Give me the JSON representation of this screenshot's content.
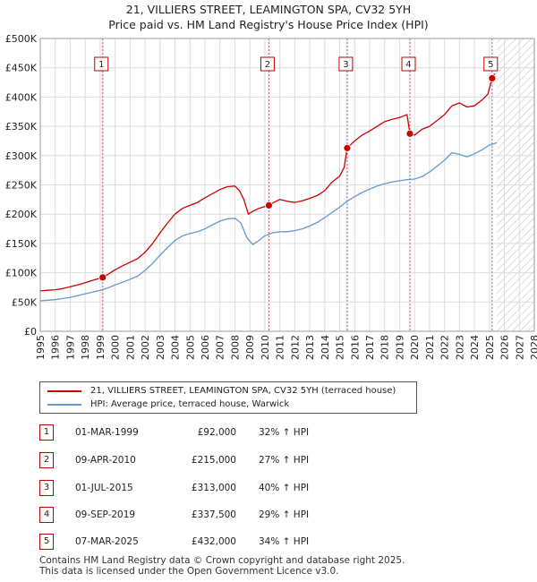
{
  "chart_data": {
    "type": "line",
    "title": "21, VILLIERS STREET, LEAMINGTON SPA, CV32 5YH",
    "subtitle": "Price paid vs. HM Land Registry's House Price Index (HPI)",
    "xlabel": "",
    "ylabel": "",
    "xlim": [
      1995,
      2028
    ],
    "ylim": [
      0,
      500000
    ],
    "y_ticks": [
      0,
      50000,
      100000,
      150000,
      200000,
      250000,
      300000,
      350000,
      400000,
      450000,
      500000
    ],
    "y_tick_labels": [
      "£0",
      "£50K",
      "£100K",
      "£150K",
      "£200K",
      "£250K",
      "£300K",
      "£350K",
      "£400K",
      "£450K",
      "£500K"
    ],
    "x_ticks": [
      1995,
      1996,
      1997,
      1998,
      1999,
      2000,
      2001,
      2002,
      2003,
      2004,
      2005,
      2006,
      2007,
      2008,
      2009,
      2010,
      2011,
      2012,
      2013,
      2014,
      2015,
      2016,
      2017,
      2018,
      2019,
      2020,
      2021,
      2022,
      2023,
      2024,
      2025,
      2026,
      2027,
      2028
    ],
    "x_tick_labels": [
      "1995",
      "1996",
      "1997",
      "1998",
      "1999",
      "2000",
      "2001",
      "2002",
      "2003",
      "2004",
      "2005",
      "2006",
      "2007",
      "2008",
      "2009",
      "2010",
      "2011",
      "2012",
      "2013",
      "2014",
      "2015",
      "2016",
      "2017",
      "2018",
      "2019",
      "2020",
      "2021",
      "2022",
      "2023",
      "2024",
      "2025",
      "2026",
      "2027",
      "2028"
    ],
    "grid": true,
    "forecast_start": 2025.5,
    "series": [
      {
        "name": "21, VILLIERS STREET, LEAMINGTON SPA, CV32 5YH (terraced house)",
        "color": "#cc0000",
        "points": [
          [
            1995.0,
            69000
          ],
          [
            1995.5,
            70000
          ],
          [
            1996.0,
            71000
          ],
          [
            1996.5,
            73000
          ],
          [
            1997.0,
            76000
          ],
          [
            1997.5,
            79000
          ],
          [
            1998.0,
            83000
          ],
          [
            1998.5,
            87000
          ],
          [
            1999.17,
            92000
          ],
          [
            1999.5,
            97000
          ],
          [
            2000.0,
            105000
          ],
          [
            2000.5,
            112000
          ],
          [
            2001.0,
            118000
          ],
          [
            2001.5,
            124000
          ],
          [
            2002.0,
            135000
          ],
          [
            2002.5,
            150000
          ],
          [
            2003.0,
            168000
          ],
          [
            2003.5,
            185000
          ],
          [
            2004.0,
            200000
          ],
          [
            2004.5,
            210000
          ],
          [
            2005.0,
            215000
          ],
          [
            2005.5,
            220000
          ],
          [
            2006.0,
            228000
          ],
          [
            2006.5,
            235000
          ],
          [
            2007.0,
            242000
          ],
          [
            2007.5,
            247000
          ],
          [
            2008.0,
            248000
          ],
          [
            2008.3,
            240000
          ],
          [
            2008.6,
            225000
          ],
          [
            2008.9,
            200000
          ],
          [
            2009.2,
            205000
          ],
          [
            2009.6,
            210000
          ],
          [
            2010.27,
            215000
          ],
          [
            2010.6,
            220000
          ],
          [
            2011.0,
            225000
          ],
          [
            2011.5,
            222000
          ],
          [
            2012.0,
            220000
          ],
          [
            2012.5,
            223000
          ],
          [
            2013.0,
            227000
          ],
          [
            2013.5,
            232000
          ],
          [
            2014.0,
            240000
          ],
          [
            2014.5,
            255000
          ],
          [
            2015.0,
            265000
          ],
          [
            2015.3,
            280000
          ],
          [
            2015.5,
            313000
          ],
          [
            2016.0,
            325000
          ],
          [
            2016.5,
            335000
          ],
          [
            2017.0,
            342000
          ],
          [
            2017.5,
            350000
          ],
          [
            2018.0,
            358000
          ],
          [
            2018.5,
            362000
          ],
          [
            2019.0,
            365000
          ],
          [
            2019.5,
            370000
          ],
          [
            2019.69,
            337500
          ],
          [
            2020.0,
            335000
          ],
          [
            2020.5,
            345000
          ],
          [
            2021.0,
            350000
          ],
          [
            2021.5,
            360000
          ],
          [
            2022.0,
            370000
          ],
          [
            2022.5,
            385000
          ],
          [
            2023.0,
            390000
          ],
          [
            2023.5,
            383000
          ],
          [
            2024.0,
            385000
          ],
          [
            2024.5,
            395000
          ],
          [
            2024.9,
            405000
          ],
          [
            2025.18,
            432000
          ],
          [
            2025.35,
            440000
          ]
        ]
      },
      {
        "name": "HPI: Average price, terraced house, Warwick",
        "color": "#6699cc",
        "points": [
          [
            1995.0,
            52000
          ],
          [
            1995.5,
            53000
          ],
          [
            1996.0,
            54000
          ],
          [
            1996.5,
            56000
          ],
          [
            1997.0,
            58000
          ],
          [
            1997.5,
            61000
          ],
          [
            1998.0,
            64000
          ],
          [
            1998.5,
            67000
          ],
          [
            1999.0,
            70000
          ],
          [
            1999.5,
            74000
          ],
          [
            2000.0,
            79000
          ],
          [
            2000.5,
            84000
          ],
          [
            2001.0,
            89000
          ],
          [
            2001.5,
            94000
          ],
          [
            2002.0,
            104000
          ],
          [
            2002.5,
            116000
          ],
          [
            2003.0,
            130000
          ],
          [
            2003.5,
            143000
          ],
          [
            2004.0,
            155000
          ],
          [
            2004.5,
            163000
          ],
          [
            2005.0,
            167000
          ],
          [
            2005.5,
            170000
          ],
          [
            2006.0,
            175000
          ],
          [
            2006.5,
            182000
          ],
          [
            2007.0,
            188000
          ],
          [
            2007.5,
            192000
          ],
          [
            2008.0,
            193000
          ],
          [
            2008.4,
            185000
          ],
          [
            2008.8,
            160000
          ],
          [
            2009.2,
            148000
          ],
          [
            2009.6,
            155000
          ],
          [
            2010.0,
            163000
          ],
          [
            2010.5,
            168000
          ],
          [
            2011.0,
            170000
          ],
          [
            2011.5,
            170000
          ],
          [
            2012.0,
            172000
          ],
          [
            2012.5,
            175000
          ],
          [
            2013.0,
            180000
          ],
          [
            2013.5,
            186000
          ],
          [
            2014.0,
            194000
          ],
          [
            2014.5,
            203000
          ],
          [
            2015.0,
            212000
          ],
          [
            2015.5,
            222000
          ],
          [
            2016.0,
            230000
          ],
          [
            2016.5,
            237000
          ],
          [
            2017.0,
            243000
          ],
          [
            2017.5,
            248000
          ],
          [
            2018.0,
            252000
          ],
          [
            2018.5,
            255000
          ],
          [
            2019.0,
            257000
          ],
          [
            2019.5,
            259000
          ],
          [
            2020.0,
            260000
          ],
          [
            2020.5,
            264000
          ],
          [
            2021.0,
            272000
          ],
          [
            2021.5,
            282000
          ],
          [
            2022.0,
            292000
          ],
          [
            2022.5,
            305000
          ],
          [
            2023.0,
            302000
          ],
          [
            2023.5,
            298000
          ],
          [
            2024.0,
            303000
          ],
          [
            2024.5,
            310000
          ],
          [
            2025.0,
            318000
          ],
          [
            2025.5,
            322000
          ]
        ]
      }
    ],
    "sales": [
      {
        "num": "1",
        "x": 1999.17,
        "price": 92000
      },
      {
        "num": "2",
        "x": 2010.27,
        "price": 215000
      },
      {
        "num": "3",
        "x": 2015.5,
        "price": 313000
      },
      {
        "num": "4",
        "x": 2019.69,
        "price": 337500
      },
      {
        "num": "5",
        "x": 2025.18,
        "price": 432000
      }
    ]
  },
  "legend": {
    "property": "21, VILLIERS STREET, LEAMINGTON SPA, CV32 5YH (terraced house)",
    "hpi": "HPI: Average price, terraced house, Warwick"
  },
  "table": [
    {
      "num": "1",
      "date": "01-MAR-1999",
      "price": "£92,000",
      "hpi": "32% ↑ HPI"
    },
    {
      "num": "2",
      "date": "09-APR-2010",
      "price": "£215,000",
      "hpi": "27% ↑ HPI"
    },
    {
      "num": "3",
      "date": "01-JUL-2015",
      "price": "£313,000",
      "hpi": "40% ↑ HPI"
    },
    {
      "num": "4",
      "date": "09-SEP-2019",
      "price": "£337,500",
      "hpi": "29% ↑ HPI"
    },
    {
      "num": "5",
      "date": "07-MAR-2025",
      "price": "£432,000",
      "hpi": "34% ↑ HPI"
    }
  ],
  "footer": {
    "line1": "Contains HM Land Registry data © Crown copyright and database right 2025.",
    "line2": "This data is licensed under the Open Government Licence v3.0."
  }
}
